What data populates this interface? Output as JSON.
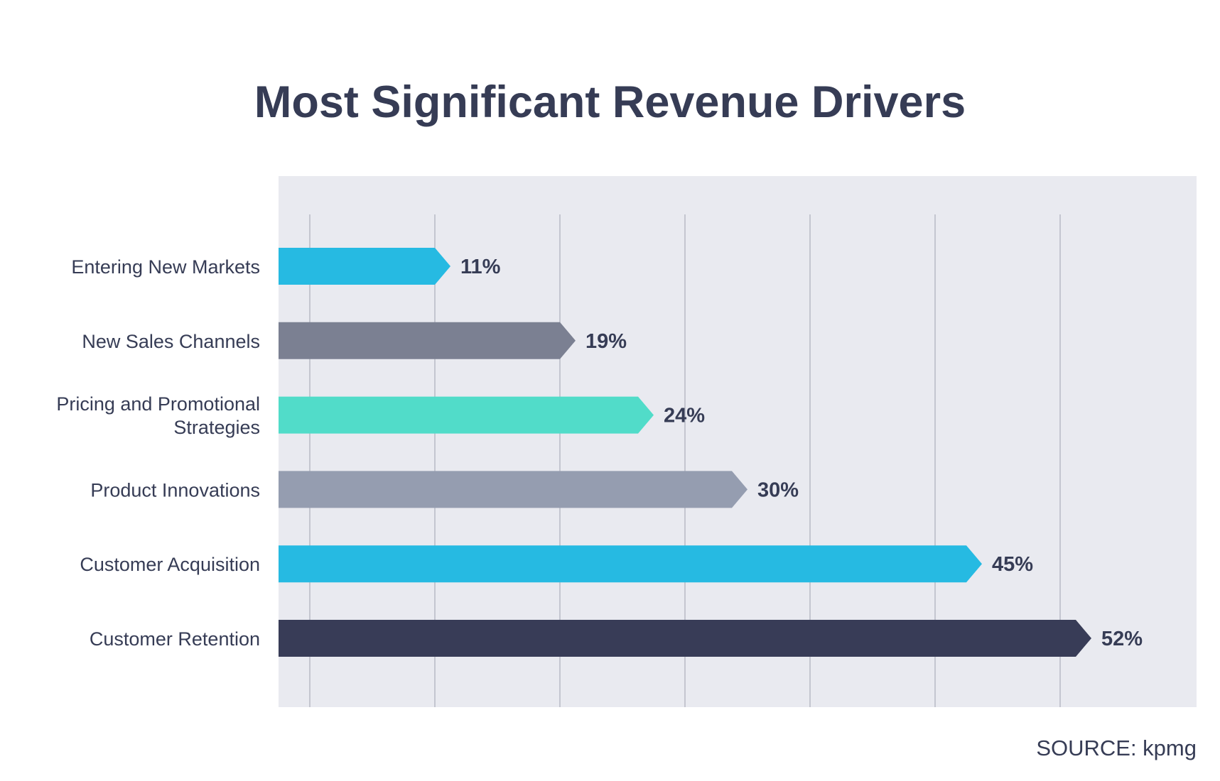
{
  "chart_data": {
    "type": "bar",
    "orientation": "horizontal",
    "title": "Most Significant Revenue Drivers",
    "categories": [
      [
        "Entering New Markets"
      ],
      [
        "New Sales Channels"
      ],
      [
        "Pricing and Promotional",
        "Strategies"
      ],
      [
        "Product Innovations"
      ],
      [
        "Customer Acquisition"
      ],
      [
        "Customer Retention"
      ]
    ],
    "values": [
      11,
      19,
      24,
      30,
      45,
      52
    ],
    "value_labels": [
      "11%",
      "19%",
      "24%",
      "30%",
      "45%",
      "52%"
    ],
    "bar_colors": [
      "#26bae2",
      "#7b8092",
      "#51dcc9",
      "#959db0",
      "#26bae2",
      "#383c57"
    ],
    "xlim": [
      0,
      56
    ],
    "gridlines": [
      2,
      10,
      18,
      26,
      34,
      42,
      50
    ],
    "grid": true,
    "xlabel": "",
    "ylabel": ""
  },
  "source": "SOURCE: kpmg",
  "colors": {
    "plot_background": "#e9eaf0",
    "gridline": "#b7bac6",
    "text": "#363c55"
  }
}
